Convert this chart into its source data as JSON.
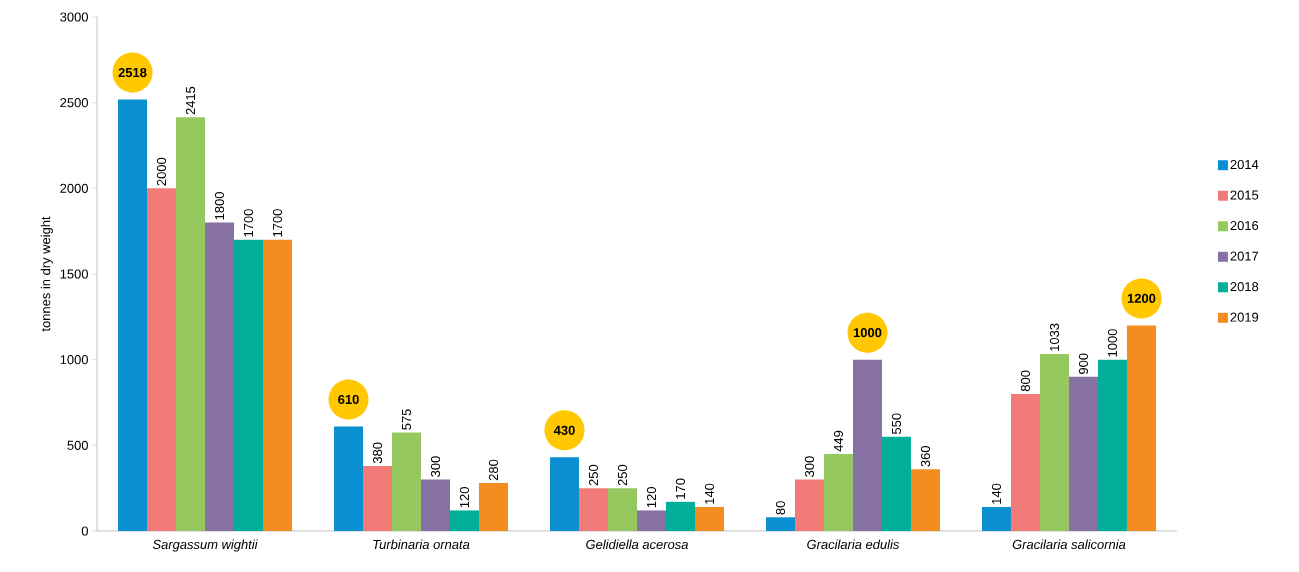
{
  "chart_data": {
    "type": "bar",
    "ylabel": "tonnes in dry weight",
    "categories": [
      "Sargassum wightii",
      "Turbinaria ornata",
      "Gelidiella acerosa",
      "Gracilaria edulis",
      "Gracilaria salicornia"
    ],
    "series": [
      {
        "name": "2014",
        "color": "#0a8fd0",
        "values": [
          2518,
          610,
          430,
          80,
          140
        ]
      },
      {
        "name": "2015",
        "color": "#f27a77",
        "values": [
          2000,
          380,
          250,
          300,
          800
        ]
      },
      {
        "name": "2016",
        "color": "#95c85f",
        "values": [
          2415,
          575,
          250,
          449,
          1033
        ]
      },
      {
        "name": "2017",
        "color": "#8770a2",
        "values": [
          1800,
          300,
          120,
          1000,
          900
        ]
      },
      {
        "name": "2018",
        "color": "#00ae99",
        "values": [
          1700,
          120,
          170,
          550,
          1000
        ]
      },
      {
        "name": "2019",
        "color": "#f48d20",
        "values": [
          1700,
          280,
          140,
          360,
          1200
        ]
      }
    ],
    "ylim": [
      0,
      3000
    ],
    "yticks": [
      0,
      500,
      1000,
      1500,
      2000,
      2500,
      3000
    ],
    "data_labels": true,
    "legend": "right",
    "grid": false
  }
}
